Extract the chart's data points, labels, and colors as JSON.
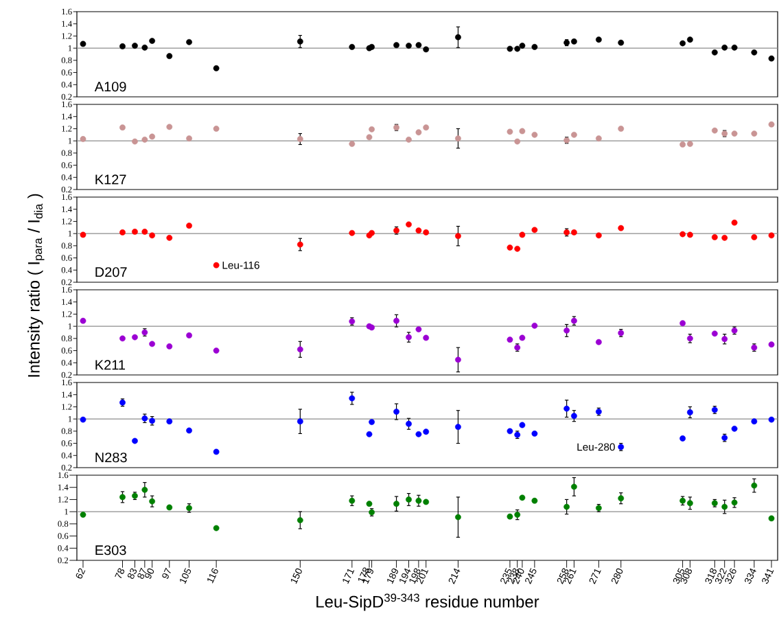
{
  "chart_data": [
    {
      "type": "scatter",
      "xlim": [
        59.5,
        343.5
      ],
      "ylim": [
        0.2,
        1.6
      ],
      "yticks": [
        0.2,
        0.4,
        0.6,
        0.8,
        1,
        1.2,
        1.4,
        1.6
      ],
      "tick_labels": "y",
      "marker": "circle",
      "annotations": [
        "A109"
      ],
      "ref_lines": [
        {
          "axis": "y",
          "value": 1,
          "color": "#8c8c8c"
        }
      ],
      "x": [
        62,
        78,
        83,
        87,
        90,
        97,
        105,
        116,
        150,
        171,
        178,
        179,
        189,
        194,
        198,
        201,
        214,
        235,
        238,
        240,
        245,
        258,
        261,
        271,
        280,
        305,
        308,
        318,
        322,
        326,
        334,
        341
      ],
      "series": [
        {
          "color": "#000000",
          "values": [
            1.07,
            1.03,
            1.04,
            1.01,
            1.12,
            0.87,
            1.1,
            0.67,
            1.11,
            1.02,
            1.0,
            1.02,
            1.05,
            1.04,
            1.05,
            0.98,
            1.18,
            0.99,
            0.99,
            1.04,
            1.02,
            1.09,
            1.11,
            1.14,
            1.09,
            1.08,
            1.14,
            0.93,
            1.01,
            1.01,
            0.93,
            0.83
          ],
          "errors": [
            null,
            null,
            null,
            null,
            null,
            null,
            null,
            null,
            0.1,
            null,
            null,
            null,
            null,
            null,
            null,
            null,
            0.17,
            null,
            null,
            null,
            null,
            0.05,
            null,
            null,
            null,
            null,
            null,
            null,
            null,
            null,
            null,
            null
          ]
        }
      ]
    },
    {
      "type": "scatter",
      "xlim": [
        59.5,
        343.5
      ],
      "ylim": [
        0.2,
        1.6
      ],
      "yticks": [
        0.2,
        0.4,
        0.6,
        0.8,
        1,
        1.2,
        1.4,
        1.6
      ],
      "tick_labels": "y",
      "marker": "circle",
      "annotations": [
        "K127"
      ],
      "ref_lines": [
        {
          "axis": "y",
          "value": 1,
          "color": "#8c8c8c"
        }
      ],
      "x": [
        62,
        78,
        83,
        87,
        90,
        97,
        105,
        116,
        150,
        171,
        178,
        179,
        189,
        194,
        198,
        201,
        214,
        235,
        238,
        240,
        245,
        258,
        261,
        271,
        280,
        305,
        308,
        318,
        322,
        326,
        334,
        341
      ],
      "series": [
        {
          "color": "#c99494",
          "values": [
            1.03,
            1.22,
            0.99,
            1.02,
            1.07,
            1.23,
            1.04,
            1.2,
            1.03,
            0.95,
            1.06,
            1.19,
            1.22,
            1.02,
            1.14,
            1.22,
            1.04,
            1.15,
            0.99,
            1.16,
            1.1,
            1.01,
            1.1,
            1.04,
            1.2,
            0.94,
            0.95,
            1.17,
            1.12,
            1.12,
            1.12,
            1.27
          ],
          "errors": [
            null,
            null,
            null,
            null,
            null,
            null,
            null,
            null,
            0.09,
            null,
            null,
            null,
            0.05,
            null,
            null,
            null,
            0.16,
            null,
            null,
            null,
            null,
            0.05,
            null,
            null,
            null,
            null,
            null,
            null,
            0.05,
            null,
            null,
            null
          ]
        }
      ]
    },
    {
      "type": "scatter",
      "xlim": [
        59.5,
        343.5
      ],
      "ylim": [
        0.2,
        1.6
      ],
      "yticks": [
        0.2,
        0.4,
        0.6,
        0.8,
        1,
        1.2,
        1.4,
        1.6
      ],
      "tick_labels": "y",
      "marker": "circle",
      "ylabel": "Intensity ratio ( I$_{para}$ / I$_{dia}$ )",
      "annotations": [
        "D207",
        {
          "text": "Leu-116",
          "x": 116,
          "y": 0.48
        }
      ],
      "ref_lines": [
        {
          "axis": "y",
          "value": 1,
          "color": "#8c8c8c"
        }
      ],
      "x": [
        62,
        78,
        83,
        87,
        90,
        97,
        105,
        116,
        150,
        171,
        178,
        179,
        189,
        194,
        198,
        201,
        214,
        235,
        238,
        240,
        245,
        258,
        261,
        271,
        280,
        305,
        308,
        318,
        322,
        326,
        334,
        341
      ],
      "series": [
        {
          "color": "#ff0000",
          "values": [
            0.98,
            1.02,
            1.03,
            1.03,
            0.97,
            0.93,
            1.13,
            0.48,
            0.82,
            1.01,
            0.97,
            1.01,
            1.05,
            1.15,
            1.05,
            1.02,
            0.96,
            0.77,
            0.75,
            0.98,
            1.06,
            1.02,
            1.02,
            0.97,
            1.09,
            0.99,
            0.98,
            0.94,
            0.93,
            1.18,
            0.94,
            0.97
          ],
          "errors": [
            null,
            null,
            null,
            null,
            null,
            null,
            null,
            null,
            0.1,
            null,
            null,
            null,
            0.06,
            null,
            null,
            null,
            0.16,
            null,
            null,
            null,
            null,
            0.06,
            null,
            null,
            null,
            null,
            null,
            null,
            null,
            null,
            null,
            null
          ]
        }
      ]
    },
    {
      "type": "scatter",
      "xlim": [
        59.5,
        343.5
      ],
      "ylim": [
        0.2,
        1.6
      ],
      "yticks": [
        0.2,
        0.4,
        0.6,
        0.8,
        1,
        1.2,
        1.4,
        1.6
      ],
      "tick_labels": "y",
      "marker": "circle",
      "annotations": [
        "K211"
      ],
      "ref_lines": [
        {
          "axis": "y",
          "value": 1,
          "color": "#8c8c8c"
        }
      ],
      "x": [
        62,
        78,
        83,
        87,
        90,
        97,
        105,
        116,
        150,
        171,
        178,
        179,
        189,
        194,
        198,
        201,
        214,
        235,
        238,
        240,
        245,
        258,
        261,
        271,
        280,
        305,
        308,
        318,
        322,
        326,
        334,
        341
      ],
      "series": [
        {
          "color": "#9b00d3",
          "values": [
            1.09,
            0.8,
            0.82,
            0.9,
            0.71,
            0.67,
            0.85,
            0.6,
            0.62,
            1.08,
            1.0,
            0.98,
            1.09,
            0.82,
            0.95,
            0.81,
            0.45,
            0.78,
            0.65,
            0.81,
            1.01,
            0.93,
            1.09,
            0.74,
            0.89,
            1.05,
            0.8,
            0.88,
            0.79,
            0.93,
            0.65,
            0.7
          ],
          "errors": [
            null,
            null,
            null,
            0.06,
            null,
            null,
            null,
            null,
            0.13,
            0.06,
            null,
            null,
            0.1,
            0.08,
            null,
            null,
            0.2,
            null,
            0.06,
            null,
            null,
            0.1,
            0.07,
            null,
            0.06,
            null,
            0.07,
            null,
            0.08,
            0.06,
            0.06,
            null
          ]
        }
      ]
    },
    {
      "type": "scatter",
      "xlim": [
        59.5,
        343.5
      ],
      "ylim": [
        0.2,
        1.6
      ],
      "yticks": [
        0.2,
        0.4,
        0.6,
        0.8,
        1,
        1.2,
        1.4,
        1.6
      ],
      "tick_labels": "y",
      "marker": "circle",
      "annotations": [
        "N283",
        {
          "text": "Leu-280",
          "x": 280,
          "y": 0.54
        }
      ],
      "ref_lines": [
        {
          "axis": "y",
          "value": 1,
          "color": "#8c8c8c"
        }
      ],
      "x": [
        62,
        78,
        83,
        87,
        90,
        97,
        105,
        116,
        150,
        171,
        178,
        179,
        189,
        194,
        198,
        201,
        214,
        235,
        238,
        240,
        245,
        258,
        261,
        271,
        280,
        305,
        308,
        318,
        322,
        326,
        334,
        341
      ],
      "series": [
        {
          "color": "#0000ff",
          "values": [
            0.99,
            1.27,
            0.64,
            1.01,
            0.97,
            0.96,
            0.81,
            0.46,
            0.96,
            1.34,
            0.75,
            0.95,
            1.12,
            0.92,
            0.75,
            0.79,
            0.87,
            0.8,
            0.74,
            0.9,
            0.76,
            1.17,
            1.05,
            1.12,
            0.54,
            0.68,
            1.11,
            1.15,
            0.69,
            0.84,
            0.96,
            0.99
          ],
          "errors": [
            null,
            0.06,
            null,
            0.07,
            0.07,
            null,
            null,
            null,
            0.2,
            0.1,
            null,
            null,
            0.13,
            0.09,
            null,
            null,
            0.27,
            null,
            0.06,
            null,
            null,
            0.14,
            0.09,
            0.06,
            0.06,
            null,
            0.09,
            0.06,
            0.06,
            null,
            null,
            null
          ]
        }
      ]
    },
    {
      "type": "scatter",
      "xlim": [
        59.5,
        343.5
      ],
      "ylim": [
        0.2,
        1.6
      ],
      "yticks": [
        0.2,
        0.4,
        0.6,
        0.8,
        1,
        1.2,
        1.4,
        1.6
      ],
      "xticks": [
        62,
        78,
        83,
        87,
        90,
        97,
        105,
        116,
        150,
        171,
        178,
        179,
        189,
        194,
        198,
        201,
        214,
        235,
        238,
        240,
        245,
        258,
        261,
        271,
        280,
        305,
        308,
        318,
        322,
        326,
        334,
        341
      ],
      "marker": "circle",
      "xlabel": "Leu-SipD$^{39-343}$ residue number",
      "annotations": [
        "E303"
      ],
      "ref_lines": [
        {
          "axis": "y",
          "value": 1,
          "color": "#8c8c8c"
        }
      ],
      "x": [
        62,
        78,
        83,
        87,
        90,
        97,
        105,
        116,
        150,
        171,
        178,
        179,
        189,
        194,
        198,
        201,
        214,
        235,
        238,
        240,
        245,
        258,
        261,
        271,
        280,
        305,
        308,
        318,
        322,
        326,
        334,
        341
      ],
      "series": [
        {
          "color": "#008000",
          "values": [
            0.95,
            1.24,
            1.26,
            1.36,
            1.17,
            1.07,
            1.06,
            0.73,
            0.86,
            1.18,
            1.13,
            0.99,
            1.13,
            1.2,
            1.18,
            1.16,
            0.91,
            0.92,
            0.95,
            1.23,
            1.18,
            1.08,
            1.41,
            1.06,
            1.22,
            1.18,
            1.14,
            1.14,
            1.08,
            1.15,
            1.43,
            0.89
          ],
          "errors": [
            null,
            0.09,
            0.06,
            0.12,
            0.09,
            null,
            0.07,
            null,
            0.14,
            0.08,
            null,
            0.06,
            0.12,
            0.1,
            0.09,
            null,
            0.33,
            null,
            0.08,
            null,
            null,
            0.12,
            0.15,
            0.06,
            0.09,
            0.07,
            0.1,
            0.06,
            0.11,
            0.08,
            0.11,
            null
          ]
        }
      ]
    }
  ]
}
